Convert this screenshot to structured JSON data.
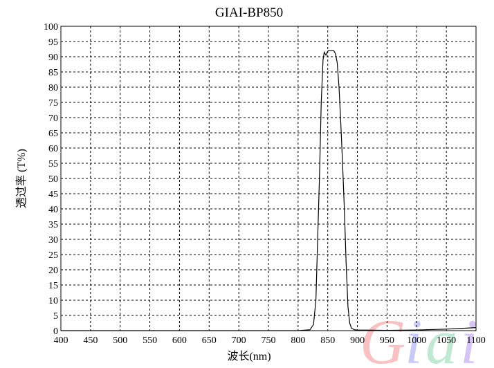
{
  "chart_data": {
    "type": "line",
    "title": "GIAI-BP850",
    "xlabel": "波长(nm)",
    "ylabel": "透过率 (T%)",
    "xlim": [
      400,
      1100
    ],
    "ylim": [
      0,
      100
    ],
    "xticks": [
      400,
      450,
      500,
      550,
      600,
      650,
      700,
      750,
      800,
      850,
      900,
      950,
      1000,
      1050,
      1100
    ],
    "yticks": [
      0,
      5,
      10,
      15,
      20,
      25,
      30,
      35,
      40,
      45,
      50,
      55,
      60,
      65,
      70,
      75,
      80,
      85,
      90,
      95,
      100
    ],
    "grid": true,
    "line_color": "#000000",
    "series": [
      {
        "x": [
          400,
          600,
          800,
          820,
          826,
          830,
          833,
          836,
          839,
          842,
          844,
          847,
          849,
          851,
          855,
          860,
          863,
          866,
          869,
          872,
          875,
          878,
          881,
          884,
          887,
          890,
          895,
          900,
          950,
          1000,
          1050,
          1100
        ],
        "y": [
          0,
          0,
          0,
          0.3,
          2,
          10,
          30,
          50,
          75,
          89,
          91.5,
          90.5,
          91.5,
          92,
          92,
          92,
          91,
          88,
          80,
          68,
          55,
          40,
          22,
          8,
          2.5,
          0.8,
          0.3,
          0.2,
          0.1,
          0.2,
          0.5,
          1
        ]
      }
    ],
    "watermark": "Giai"
  }
}
